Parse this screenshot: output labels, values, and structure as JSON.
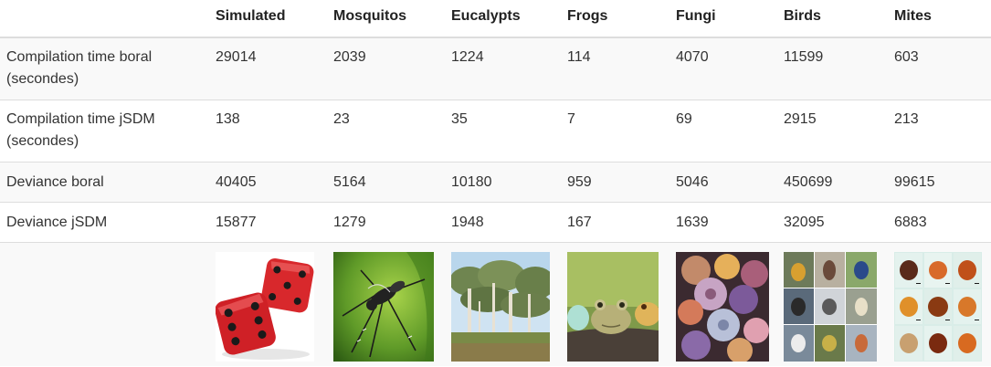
{
  "headers": [
    "",
    "Simulated",
    "Mosquitos",
    "Eucalypts",
    "Frogs",
    "Fungi",
    "Birds",
    "Mites"
  ],
  "rows": [
    {
      "label_line1": "Compilation time boral",
      "label_line2": "(secondes)",
      "values": [
        "29014",
        "2039",
        "1224",
        "114",
        "4070",
        "11599",
        "603"
      ]
    },
    {
      "label_line1": "Compilation time jSDM",
      "label_line2": "(secondes)",
      "values": [
        "138",
        "23",
        "35",
        "7",
        "69",
        "2915",
        "213"
      ]
    },
    {
      "label_line1": "Deviance boral",
      "label_line2": "",
      "values": [
        "40405",
        "5164",
        "10180",
        "959",
        "5046",
        "450699",
        "99615"
      ]
    },
    {
      "label_line1": "Deviance jSDM",
      "label_line2": "",
      "values": [
        "15877",
        "1279",
        "1948",
        "167",
        "1639",
        "32095",
        "6883"
      ]
    }
  ],
  "images": [
    "dice-image",
    "mosquito-image",
    "eucalyptus-forest-image",
    "frogs-image",
    "fungi-image",
    "birds-collage-image",
    "mites-collage-image"
  ]
}
